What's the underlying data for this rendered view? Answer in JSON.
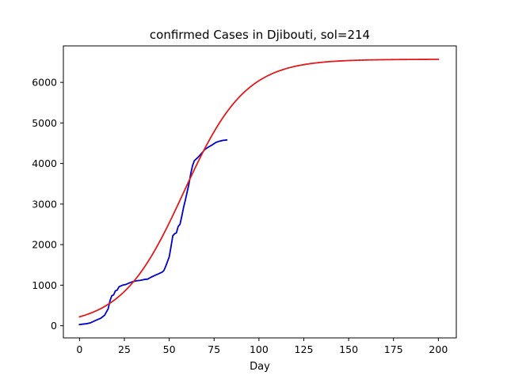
{
  "chart_data": {
    "type": "line",
    "title": "confirmed Cases in Djibouti, sol=214",
    "xlabel": "Day",
    "ylabel": "",
    "xlim": [
      -9,
      210
    ],
    "ylim": [
      -300,
      6900
    ],
    "xticks": [
      0,
      25,
      50,
      75,
      100,
      125,
      150,
      175,
      200
    ],
    "yticks": [
      0,
      1000,
      2000,
      3000,
      4000,
      5000,
      6000
    ],
    "grid": false,
    "series": [
      {
        "color": "#0000cc",
        "points": [
          [
            0,
            30
          ],
          [
            2,
            40
          ],
          [
            4,
            50
          ],
          [
            6,
            70
          ],
          [
            8,
            110
          ],
          [
            10,
            150
          ],
          [
            12,
            190
          ],
          [
            14,
            260
          ],
          [
            16,
            420
          ],
          [
            17,
            620
          ],
          [
            18,
            740
          ],
          [
            19,
            760
          ],
          [
            20,
            860
          ],
          [
            21,
            880
          ],
          [
            22,
            960
          ],
          [
            24,
            1000
          ],
          [
            26,
            1020
          ],
          [
            28,
            1060
          ],
          [
            30,
            1090
          ],
          [
            32,
            1110
          ],
          [
            34,
            1120
          ],
          [
            36,
            1140
          ],
          [
            38,
            1150
          ],
          [
            40,
            1200
          ],
          [
            42,
            1240
          ],
          [
            44,
            1280
          ],
          [
            46,
            1320
          ],
          [
            47,
            1360
          ],
          [
            48,
            1460
          ],
          [
            49,
            1580
          ],
          [
            50,
            1700
          ],
          [
            51,
            1950
          ],
          [
            52,
            2220
          ],
          [
            53,
            2270
          ],
          [
            54,
            2290
          ],
          [
            55,
            2450
          ],
          [
            56,
            2500
          ],
          [
            57,
            2700
          ],
          [
            58,
            2920
          ],
          [
            59,
            3100
          ],
          [
            60,
            3300
          ],
          [
            61,
            3500
          ],
          [
            62,
            3750
          ],
          [
            63,
            3950
          ],
          [
            64,
            4070
          ],
          [
            66,
            4150
          ],
          [
            68,
            4250
          ],
          [
            70,
            4350
          ],
          [
            72,
            4410
          ],
          [
            74,
            4460
          ],
          [
            76,
            4520
          ],
          [
            78,
            4550
          ],
          [
            80,
            4570
          ],
          [
            82,
            4580
          ]
        ]
      },
      {
        "color": "#e31a1c",
        "logistic": {
          "L": 6570,
          "k": 0.058,
          "x0": 58,
          "from": 0,
          "to": 200
        }
      }
    ]
  }
}
